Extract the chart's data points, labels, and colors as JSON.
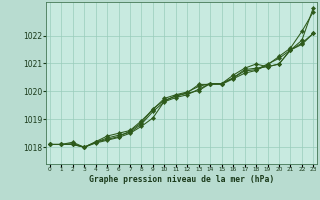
{
  "xlabel": "Graphe pression niveau de la mer (hPa)",
  "x_ticks": [
    0,
    1,
    2,
    3,
    4,
    5,
    6,
    7,
    8,
    9,
    10,
    11,
    12,
    13,
    14,
    15,
    16,
    17,
    18,
    19,
    20,
    21,
    22,
    23
  ],
  "ylim": [
    1017.4,
    1023.2
  ],
  "xlim": [
    -0.3,
    23.3
  ],
  "yticks": [
    1018,
    1019,
    1020,
    1021,
    1022
  ],
  "background_color": "#b8dcd0",
  "plot_bg_color": "#c8eae0",
  "grid_color": "#99ccbb",
  "line_color": "#2d5a1b",
  "marker_color": "#2d5a1b",
  "series": [
    [
      1018.1,
      1018.1,
      1018.1,
      1018.0,
      1018.15,
      1018.25,
      1018.35,
      1018.5,
      1018.75,
      1019.05,
      1019.65,
      1019.85,
      1019.95,
      1020.25,
      1020.25,
      1020.25,
      1020.45,
      1020.65,
      1020.75,
      1020.95,
      1021.25,
      1021.55,
      1022.15,
      1022.85
    ],
    [
      1018.1,
      1018.1,
      1018.1,
      1018.0,
      1018.2,
      1018.4,
      1018.5,
      1018.6,
      1018.95,
      1019.35,
      1019.75,
      1019.88,
      1019.98,
      1020.18,
      1020.28,
      1020.28,
      1020.48,
      1020.78,
      1020.83,
      1020.88,
      1020.98,
      1021.48,
      1021.68,
      1022.08
    ],
    [
      1018.1,
      1018.1,
      1018.18,
      1018.0,
      1018.18,
      1018.28,
      1018.38,
      1018.58,
      1018.88,
      1019.38,
      1019.68,
      1019.83,
      1019.93,
      1020.03,
      1020.28,
      1020.28,
      1020.58,
      1020.83,
      1020.98,
      1020.88,
      1020.98,
      1021.48,
      1021.73,
      1022.08
    ],
    [
      1018.1,
      1018.1,
      1018.13,
      1018.0,
      1018.18,
      1018.33,
      1018.43,
      1018.53,
      1018.83,
      1019.28,
      1019.63,
      1019.78,
      1019.88,
      1020.08,
      1020.28,
      1020.28,
      1020.48,
      1020.73,
      1020.78,
      1020.98,
      1021.18,
      1021.48,
      1021.83,
      1023.0
    ]
  ]
}
